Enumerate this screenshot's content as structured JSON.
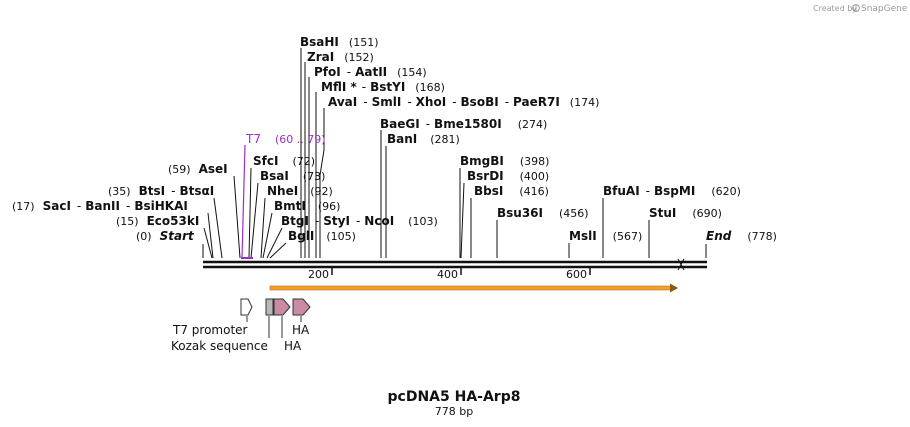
{
  "credit": "Created by",
  "brand": "SnapGene",
  "title": "pcDNA5 HA-Arp8",
  "subtitle": "778 bp",
  "length": 778,
  "start_label": "Start",
  "start_pos": "(0)",
  "end_label": "End",
  "end_pos": "(778)",
  "ruler_ticks": [
    "200",
    "400",
    "600"
  ],
  "primer": {
    "name": "T7",
    "range": "(60 .. 79)",
    "color": "#9b30c8"
  },
  "orf_color": "#f0a030",
  "features": [
    {
      "label": "T7 promoter"
    },
    {
      "label": "Kozak sequence"
    },
    {
      "label": "HA"
    },
    {
      "label": "HA"
    }
  ],
  "enzymes": [
    {
      "name": "BsaHI",
      "pos": 151,
      "label": "(151)"
    },
    {
      "name": "ZraI",
      "pos": 152,
      "label": "(152)"
    },
    {
      "names": [
        "PfoI",
        "AatII"
      ],
      "pos": 154,
      "label": "(154)"
    },
    {
      "names": [
        "MflI *",
        "BstYI"
      ],
      "pos": 168,
      "label": "(168)"
    },
    {
      "names": [
        "AvaI",
        "SmlI",
        "XhoI",
        "BsoBI",
        "PaeR7I"
      ],
      "pos": 174,
      "label": "(174)"
    },
    {
      "names": [
        "BaeGI",
        "Bme1580I"
      ],
      "pos": 274,
      "label": "(274)"
    },
    {
      "name": "BanI",
      "pos": 281,
      "label": "(281)"
    },
    {
      "name": "AseI",
      "pos": 59,
      "label": "(59)"
    },
    {
      "name": "SfcI",
      "pos": 72,
      "label": "(72)"
    },
    {
      "name": "BsaI",
      "pos": 73,
      "label": "(73)"
    },
    {
      "name": "NheI",
      "pos": 92,
      "label": "(92)"
    },
    {
      "name": "BmtI",
      "pos": 96,
      "label": "(96)"
    },
    {
      "names": [
        "BtgI",
        "StyI",
        "NcoI"
      ],
      "pos": 103,
      "label": "(103)"
    },
    {
      "name": "BglI",
      "pos": 105,
      "label": "(105)"
    },
    {
      "names": [
        "BtsI",
        "BtsαI"
      ],
      "pos": 35,
      "label": "(35)"
    },
    {
      "names": [
        "SacI",
        "BanII",
        "BsiHKAI"
      ],
      "pos": 17,
      "label": "(17)"
    },
    {
      "name": "Eco53kI",
      "pos": 15,
      "label": "(15)"
    },
    {
      "name": "BmgBI",
      "pos": 398,
      "label": "(398)"
    },
    {
      "name": "BsrDI",
      "pos": 400,
      "label": "(400)"
    },
    {
      "name": "BbsI",
      "pos": 416,
      "label": "(416)"
    },
    {
      "name": "Bsu36I",
      "pos": 456,
      "label": "(456)"
    },
    {
      "name": "MslI",
      "pos": 567,
      "label": "(567)"
    },
    {
      "names": [
        "BfuAI",
        "BspMI"
      ],
      "pos": 620,
      "label": "(620)"
    },
    {
      "name": "StuI",
      "pos": 690,
      "label": "(690)"
    }
  ]
}
